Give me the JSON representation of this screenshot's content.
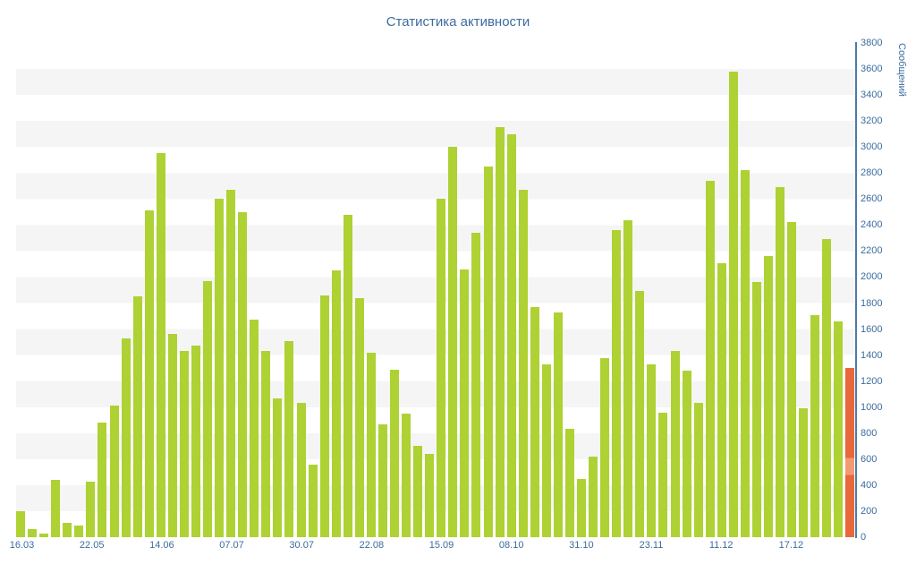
{
  "title": "Статистика активности",
  "colors": {
    "bar": "#aed133",
    "current_bar": "#e8673b",
    "current_bar_highlight": "#f29b72",
    "axis_line": "#4d7ba8",
    "text": "#3c6c9e",
    "stripe": "#f5f5f5",
    "background": "#ffffff"
  },
  "chart_data": {
    "type": "bar",
    "title": "Статистика активности",
    "xlabel": "",
    "ylabel": "Сообщений",
    "ylim": [
      0,
      3800
    ],
    "y_tick_step": 200,
    "y_ticks": [
      0,
      200,
      400,
      600,
      800,
      1000,
      1200,
      1400,
      1600,
      1800,
      2000,
      2200,
      2400,
      2600,
      2800,
      3000,
      3200,
      3400,
      3600,
      3800
    ],
    "x_tick_labels": [
      "16.03",
      "22.05",
      "14.06",
      "07.07",
      "30.07",
      "22.08",
      "15.09",
      "08.10",
      "31.10",
      "23.11",
      "11.12",
      "17.12"
    ],
    "x_tick_bar_indices": [
      0,
      6,
      12,
      18,
      24,
      30,
      36,
      42,
      48,
      54,
      60,
      66
    ],
    "grid": "horizontal-stripes-per-200",
    "legend": "none",
    "values": [
      200,
      60,
      30,
      440,
      110,
      90,
      430,
      880,
      1010,
      1530,
      1850,
      2510,
      2950,
      1560,
      1430,
      1470,
      1970,
      2600,
      2670,
      2500,
      1670,
      1430,
      1070,
      1510,
      1030,
      560,
      1860,
      2050,
      2480,
      1840,
      1420,
      870,
      1290,
      950,
      700,
      640,
      2600,
      3000,
      2060,
      2340,
      2850,
      3150,
      3100,
      2670,
      1770,
      1330,
      1730,
      830,
      450,
      620,
      1380,
      2360,
      2440,
      1890,
      1330,
      960,
      1430,
      1280,
      1030,
      2740,
      2110,
      3580,
      2820,
      1960,
      2160,
      2690,
      2420,
      990,
      1710,
      2290,
      1660,
      1300
    ],
    "current_bar": {
      "value": 1300,
      "color": "#e8673b",
      "highlight": {
        "from": 480,
        "to": 610,
        "color": "#f29b72"
      }
    }
  }
}
